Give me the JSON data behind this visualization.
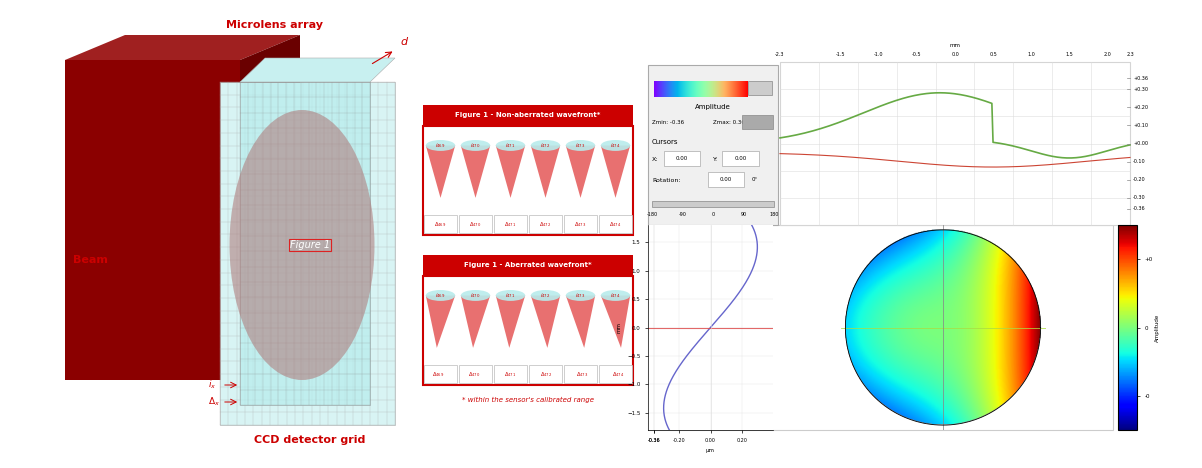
{
  "bg_color": "#ffffff",
  "beam_color_front": "#8B0000",
  "beam_color_top": "#a02020",
  "beam_color_side": "#6a0000",
  "microlens_color": "#b8ecec",
  "ccd_color": "#d8f4f4",
  "grid_color": "#aaaaaa",
  "red_label_color": "#cc0000",
  "panel_bg": "#cc0000",
  "cone_fill": "#e87070",
  "cone_top_color": "#b8ecec",
  "labels": {
    "beam": "Beam",
    "microlens": "Microlens array",
    "ccd": "CCD detector grid",
    "figure1": "Figure 1",
    "non_aberrated": "Figure 1 - Non-aberrated wavefront*",
    "aberrated": "Figure 1 - Aberrated wavefront*",
    "calibrated": "* within the sensor's calibrated range",
    "d_label": "d",
    "amplitude": "Amplitude",
    "cursors": "Cursors",
    "zmin": "Zmin: -0.36",
    "zmax": "Zmax: 0.36",
    "x_cursor": "X: 0.00",
    "y_cursor": "Y: 0.00",
    "rotation": "Rotation: 0.00",
    "rot_deg": "0°"
  },
  "cone_labels_i": [
    "$i_{469}$",
    "$i_{470}$",
    "$i_{471}$",
    "$i_{472}$",
    "$i_{473}$",
    "$i_{474}$"
  ],
  "cone_labels_delta": [
    "$\\Delta_{469}$",
    "$\\Delta_{470}$",
    "$\\Delta_{471}$",
    "$\\Delta_{472}$",
    "$\\Delta_{473}$",
    "$\\Delta_{474}$"
  ]
}
